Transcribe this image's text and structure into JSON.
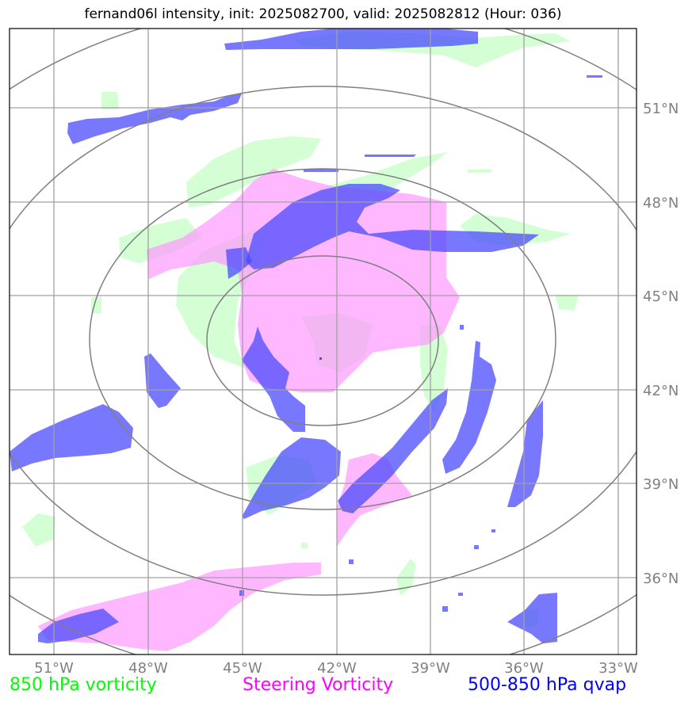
{
  "title": "fernand06l intensity, init: 2025082700, valid: 2025082812 (Hour: 036)",
  "lon_labels": [
    "51°W",
    "48°W",
    "45°W",
    "42°W",
    "39°W",
    "36°W",
    "33°W"
  ],
  "lat_labels": [
    "51°N",
    "48°N",
    "45°N",
    "42°N",
    "39°N",
    "36°N"
  ],
  "legend": [
    {
      "label": "850 hPa vorticity",
      "color": "#00ff00"
    },
    {
      "label": "Steering Vorticity",
      "color": "#ff00ff"
    },
    {
      "label": "500-850 hPa qvap",
      "color": "#0000ff"
    }
  ],
  "colors": {
    "vort850": "#ccffcc",
    "steering": "#ff99ff",
    "qvap": "#5555ff",
    "grid": "#a0a0a0",
    "rings": "#808080"
  }
}
